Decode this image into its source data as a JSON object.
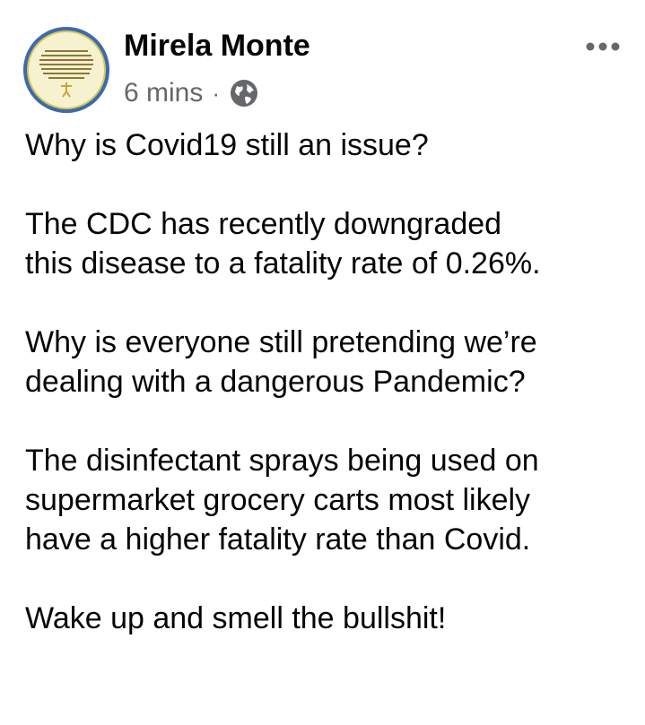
{
  "post": {
    "author": "Mirela Monte",
    "time": "6 mins",
    "separator": "·",
    "audience_icon": "globe-icon",
    "more_icon": "more-options-icon",
    "paragraphs": [
      [
        "Why is Covid19 still an issue?"
      ],
      [
        "The CDC has recently downgraded",
        "this disease to a fatality rate of 0.26%."
      ],
      [
        "Why is everyone still pretending we’re",
        "dealing with a dangerous Pandemic?"
      ],
      [
        "The disinfectant sprays being used on",
        "supermarket grocery carts most likely",
        "have a higher fatality rate than Covid."
      ],
      [
        "Wake up and smell the bullshit!"
      ]
    ]
  },
  "colors": {
    "text": "#050505",
    "secondary_text": "#65676b",
    "avatar_ring": "#3b6bb0"
  }
}
